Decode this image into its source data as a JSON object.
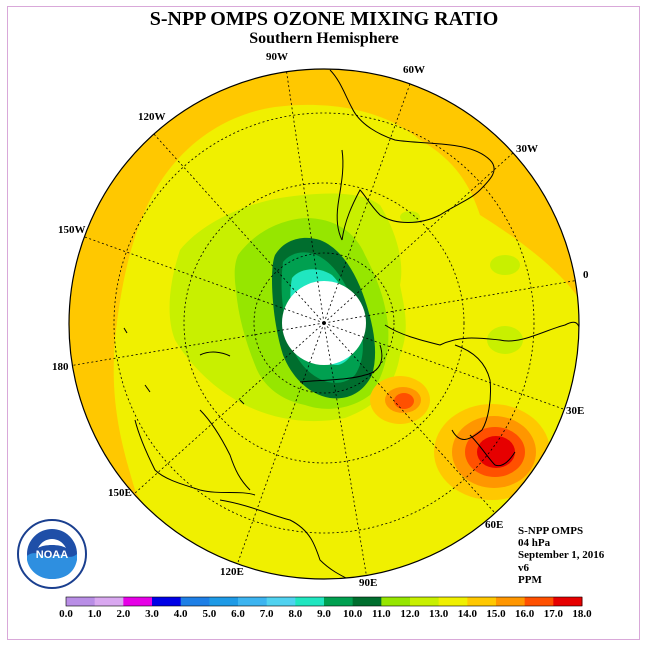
{
  "title": "S-NPP OMPS OZONE MIXING RATIO",
  "subtitle": "Southern Hemisphere",
  "longitude_labels": [
    "90W",
    "60W",
    "30W",
    "0",
    "30E",
    "60E",
    "90E",
    "120E",
    "150E",
    "180",
    "150W",
    "120W"
  ],
  "info": {
    "instrument": "S-NPP OMPS",
    "pressure": "04 hPa",
    "date": "September 1, 2016",
    "version": "v6",
    "units": "PPM"
  },
  "logo_text": "NOAA",
  "legend": {
    "ticks": [
      "0.0",
      "1.0",
      "2.0",
      "3.0",
      "4.0",
      "5.0",
      "6.0",
      "7.0",
      "8.0",
      "9.0",
      "10.0",
      "11.0",
      "12.0",
      "13.0",
      "14.0",
      "15.0",
      "16.0",
      "17.0",
      "18.0"
    ],
    "colors": [
      "#b98ee6",
      "#d9a8f0",
      "#e600e6",
      "#0000e6",
      "#1e7fe6",
      "#1e9ae6",
      "#3cb4f0",
      "#50d2f0",
      "#20e6c0",
      "#00a050",
      "#006e2e",
      "#96e600",
      "#c8f000",
      "#f0f000",
      "#ffc800",
      "#ff9600",
      "#ff5000",
      "#e60000",
      "#8c5a3c"
    ]
  },
  "colors": {
    "ozone_13_14": "#ffc800",
    "ozone_12_13": "#f0f000",
    "ozone_11_12": "#c8f000",
    "ozone_10_11": "#96e600",
    "ozone_9_10": "#006e2e",
    "ozone_8_9": "#00a050",
    "ozone_7_8": "#20e6c0",
    "ozone_15_16": "#ff9600",
    "ozone_16_17": "#ff5000",
    "ozone_17_18": "#e60000",
    "no_data": "#ffffff",
    "frame": "#d9a8d9"
  }
}
